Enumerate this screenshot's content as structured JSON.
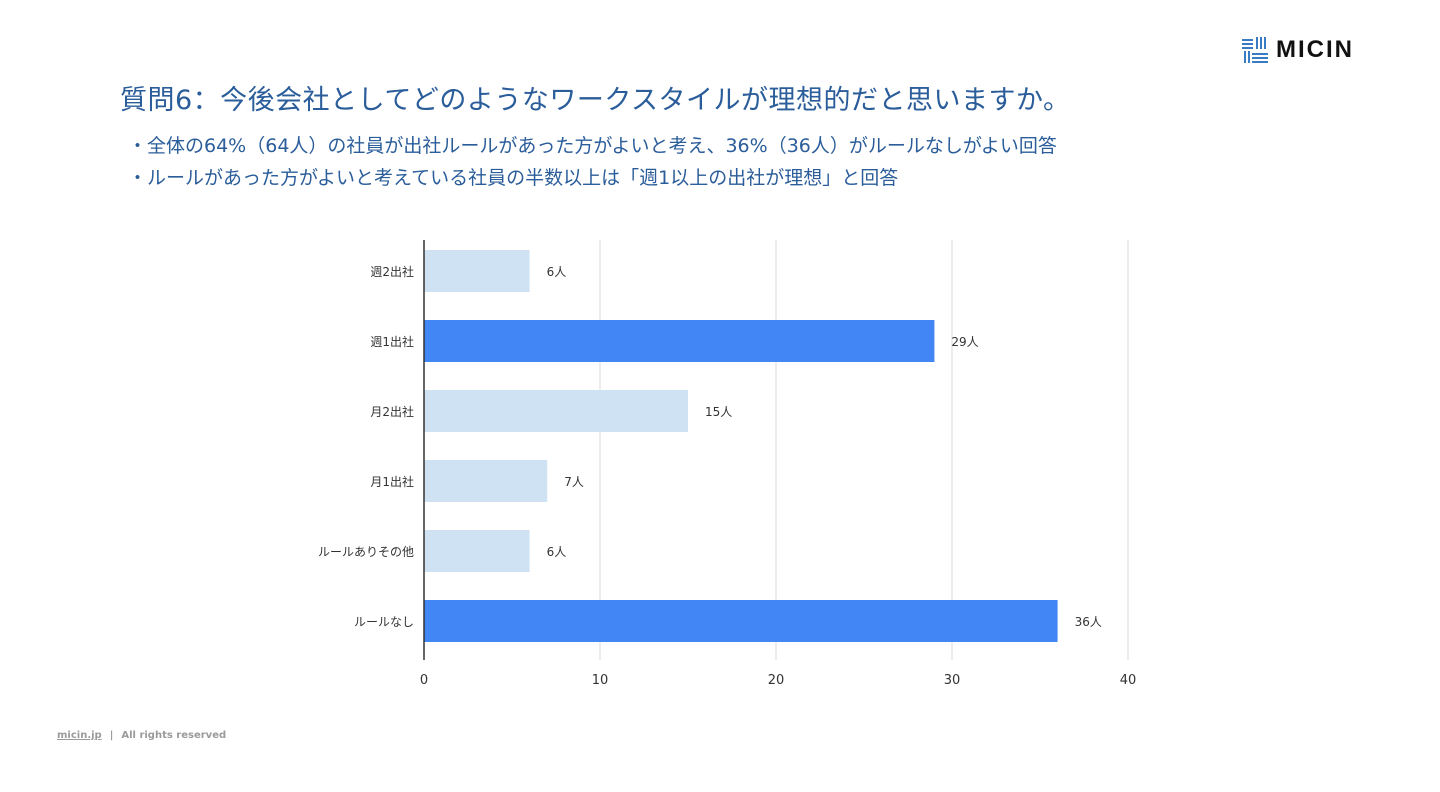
{
  "logo": {
    "text": "MICIN"
  },
  "title": "質問6：今後会社としてどのようなワークスタイルが理想的だと思いますか。",
  "bullets": [
    "・全体の64%（64人）の社員が出社ルールがあった方がよいと考え、36%（36人）がルールなしがよい回答",
    "・ルールがあった方がよいと考えている社員の半数以上は「週1以上の出社が理想」と回答"
  ],
  "footer": {
    "link": "micin.jp",
    "separator": "|",
    "rights": "All rights reserved"
  },
  "colors": {
    "highlight": "#4285f4",
    "normal": "#cfe2f3",
    "grid": "#d9d9d9",
    "axis": "#333333"
  },
  "chart_data": {
    "type": "bar",
    "orientation": "horizontal",
    "categories": [
      "週2出社",
      "週1出社",
      "月2出社",
      "月1出社",
      "ルールありその他",
      "ルールなし"
    ],
    "values": [
      6,
      29,
      15,
      7,
      6,
      36
    ],
    "data_labels": [
      "6人",
      "29人",
      "15人",
      "7人",
      "6人",
      "36人"
    ],
    "highlighted": [
      false,
      true,
      false,
      false,
      false,
      true
    ],
    "xlim": [
      0,
      40
    ],
    "xticks": [
      0,
      10,
      20,
      30,
      40
    ],
    "grid": true,
    "title": "",
    "xlabel": "",
    "ylabel": ""
  }
}
